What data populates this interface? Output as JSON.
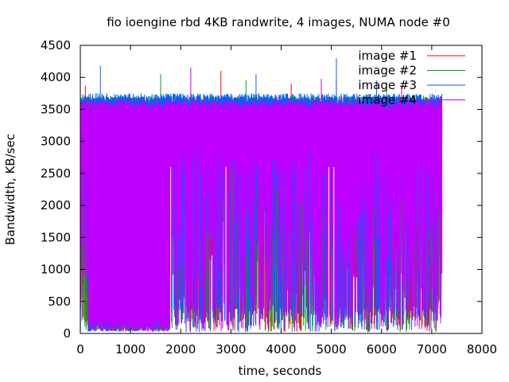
{
  "chart_data": {
    "type": "line",
    "title": "fio ioengine rbd 4KB randwrite, 4 images, NUMA node #0",
    "xlabel": "time, seconds",
    "ylabel": "Bandwidth, KB/sec",
    "xlim": [
      0,
      8000
    ],
    "ylim": [
      0,
      4500
    ],
    "xticks": [
      0,
      1000,
      2000,
      3000,
      4000,
      5000,
      6000,
      7000,
      8000
    ],
    "yticks": [
      0,
      500,
      1000,
      1500,
      2000,
      2500,
      3000,
      3500,
      4000,
      4500
    ],
    "grid": false,
    "legend_position": "top-right",
    "x_range_of_data": [
      0,
      7200
    ],
    "series": [
      {
        "name": "image #1",
        "color": "#ff0000",
        "typical_low": 100,
        "typical_high": 3700,
        "peaks": [
          {
            "x": 100,
            "y": 3870
          },
          {
            "x": 2800,
            "y": 4100
          },
          {
            "x": 4200,
            "y": 3900
          },
          {
            "x": 5100,
            "y": 3950
          }
        ]
      },
      {
        "name": "image #2",
        "color": "#00a000",
        "typical_low": 100,
        "typical_high": 3700,
        "peaks": [
          {
            "x": 1600,
            "y": 4050
          },
          {
            "x": 3300,
            "y": 3950
          },
          {
            "x": 6100,
            "y": 3900
          }
        ]
      },
      {
        "name": "image #3",
        "color": "#0060ff",
        "typical_low": 100,
        "typical_high": 3750,
        "peaks": [
          {
            "x": 400,
            "y": 4180
          },
          {
            "x": 3500,
            "y": 4050
          },
          {
            "x": 5100,
            "y": 4300
          },
          {
            "x": 5900,
            "y": 3950
          }
        ]
      },
      {
        "name": "image #4",
        "color": "#c000ff",
        "typical_low": 50,
        "typical_high": 3650,
        "peaks": [
          {
            "x": 2200,
            "y": 4150
          },
          {
            "x": 4800,
            "y": 3980
          },
          {
            "x": 6400,
            "y": 3850
          }
        ]
      }
    ]
  }
}
